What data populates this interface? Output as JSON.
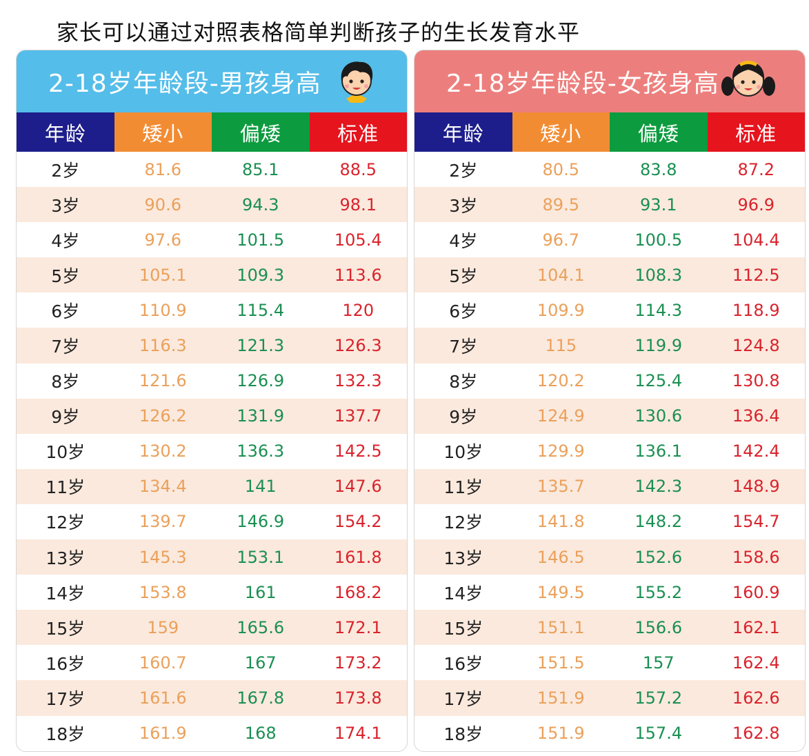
{
  "caption": "家长可以通过对照表格简单判断孩子的生长发育水平",
  "columns": [
    "年龄",
    "矮小",
    "偏矮",
    "标准"
  ],
  "boys": {
    "title": "2-18岁年龄段-男孩身高",
    "rows": [
      [
        "2岁",
        "81.6",
        "85.1",
        "88.5"
      ],
      [
        "3岁",
        "90.6",
        "94.3",
        "98.1"
      ],
      [
        "4岁",
        "97.6",
        "101.5",
        "105.4"
      ],
      [
        "5岁",
        "105.1",
        "109.3",
        "113.6"
      ],
      [
        "6岁",
        "110.9",
        "115.4",
        "120"
      ],
      [
        "7岁",
        "116.3",
        "121.3",
        "126.3"
      ],
      [
        "8岁",
        "121.6",
        "126.9",
        "132.3"
      ],
      [
        "9岁",
        "126.2",
        "131.9",
        "137.7"
      ],
      [
        "10岁",
        "130.2",
        "136.3",
        "142.5"
      ],
      [
        "11岁",
        "134.4",
        "141",
        "147.6"
      ],
      [
        "12岁",
        "139.7",
        "146.9",
        "154.2"
      ],
      [
        "13岁",
        "145.3",
        "153.1",
        "161.8"
      ],
      [
        "14岁",
        "153.8",
        "161",
        "168.2"
      ],
      [
        "15岁",
        "159",
        "165.6",
        "172.1"
      ],
      [
        "16岁",
        "160.7",
        "167",
        "173.2"
      ],
      [
        "17岁",
        "161.6",
        "167.8",
        "173.8"
      ],
      [
        "18岁",
        "161.9",
        "168",
        "174.1"
      ]
    ]
  },
  "girls": {
    "title": "2-18岁年龄段-女孩身高",
    "rows": [
      [
        "2岁",
        "80.5",
        "83.8",
        "87.2"
      ],
      [
        "3岁",
        "89.5",
        "93.1",
        "96.9"
      ],
      [
        "4岁",
        "96.7",
        "100.5",
        "104.4"
      ],
      [
        "5岁",
        "104.1",
        "108.3",
        "112.5"
      ],
      [
        "6岁",
        "109.9",
        "114.3",
        "118.9"
      ],
      [
        "7岁",
        "115",
        "119.9",
        "124.8"
      ],
      [
        "8岁",
        "120.2",
        "125.4",
        "130.8"
      ],
      [
        "9岁",
        "124.9",
        "130.6",
        "136.4"
      ],
      [
        "10岁",
        "129.9",
        "136.1",
        "142.4"
      ],
      [
        "11岁",
        "135.7",
        "142.3",
        "148.9"
      ],
      [
        "12岁",
        "141.8",
        "148.2",
        "154.7"
      ],
      [
        "13岁",
        "146.5",
        "152.6",
        "158.6"
      ],
      [
        "14岁",
        "149.5",
        "155.2",
        "160.9"
      ],
      [
        "15岁",
        "151.1",
        "156.6",
        "162.1"
      ],
      [
        "16岁",
        "151.5",
        "157",
        "162.4"
      ],
      [
        "17岁",
        "151.9",
        "157.2",
        "162.6"
      ],
      [
        "18岁",
        "151.9",
        "157.4",
        "162.8"
      ]
    ]
  },
  "colors": {
    "boys_banner": "#55bde9",
    "girls_banner": "#ec7f7d",
    "age_header": "#1d1e8b",
    "short_header": "#f28c33",
    "low_header": "#0d9b3f",
    "std_header": "#e5141d"
  },
  "icons": {
    "boys": "boy-face-icon",
    "girls": "girl-face-icon"
  }
}
